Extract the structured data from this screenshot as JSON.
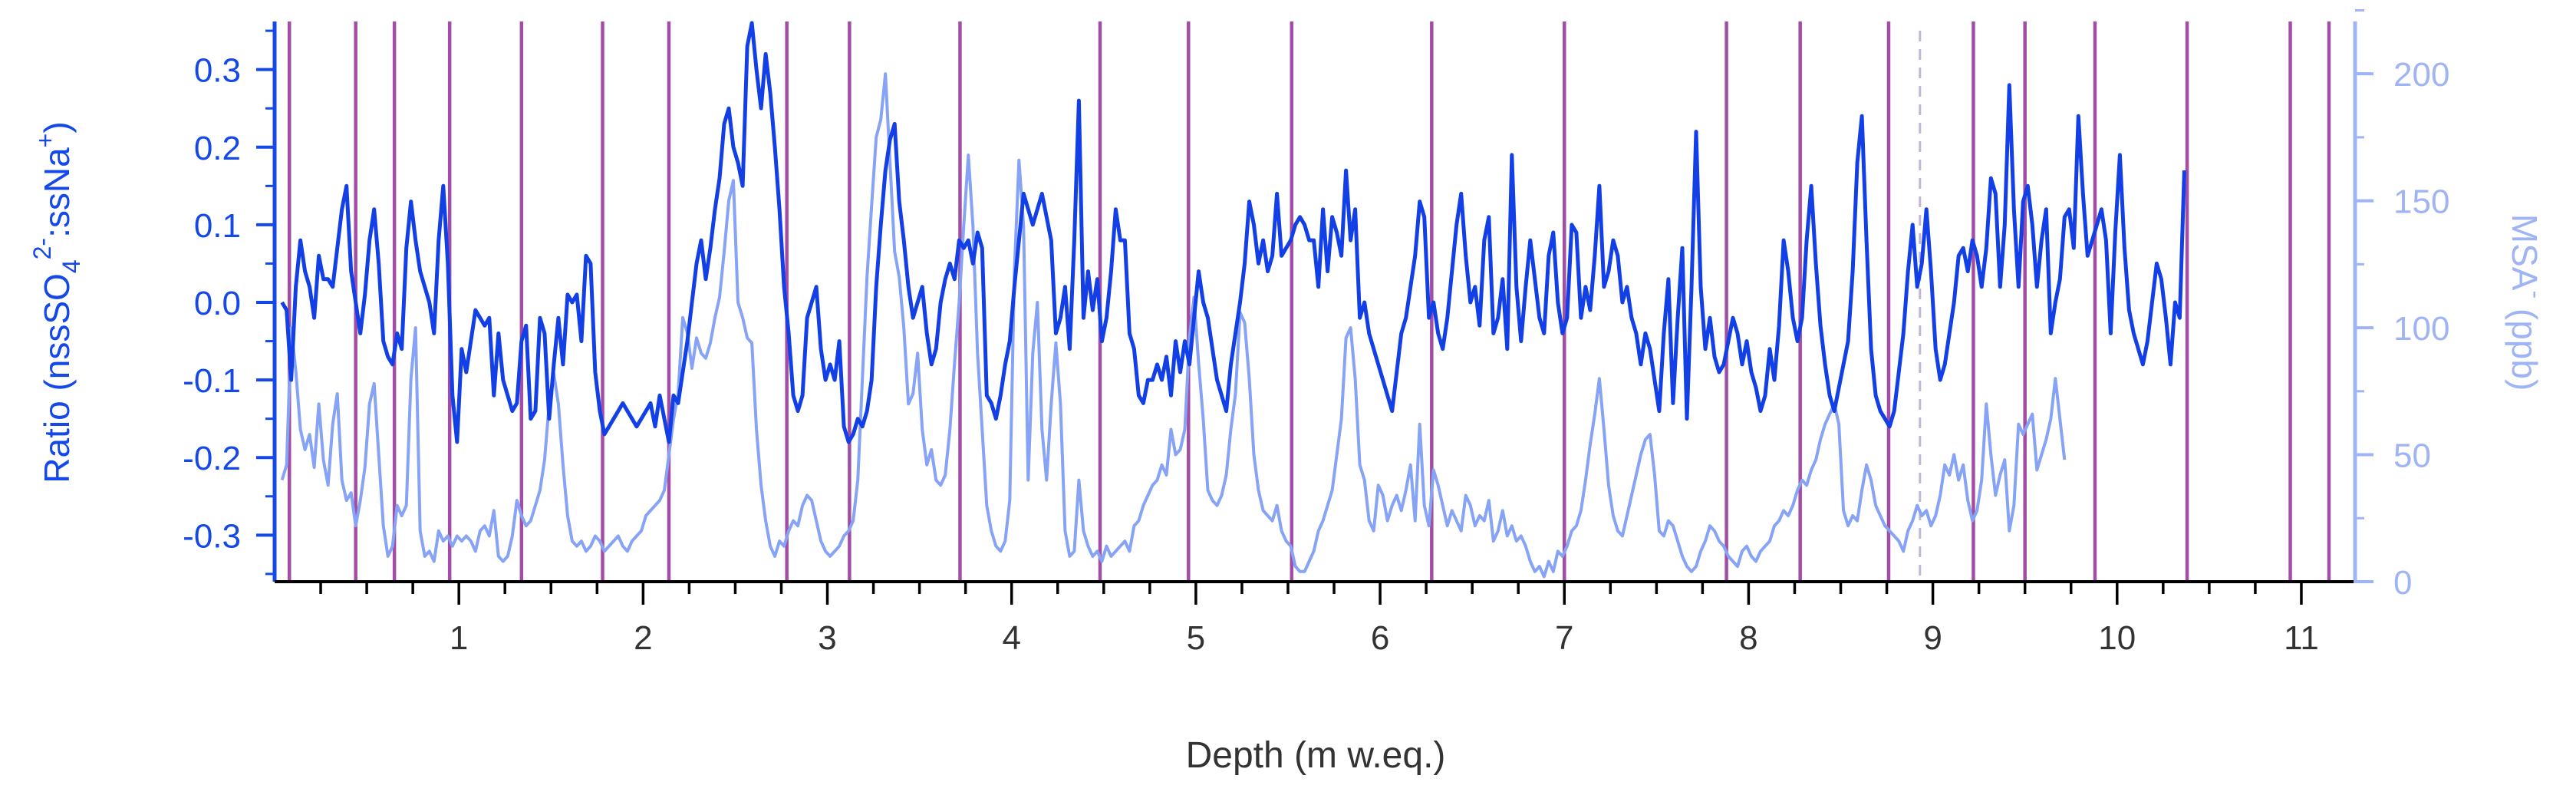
{
  "chart_data": {
    "type": "line",
    "xlabel": "Depth (m w.eq.)",
    "ylabel_left_parts": [
      "Ratio (nssSO",
      "4",
      "2-",
      ":ssNa",
      "+",
      ")"
    ],
    "ylabel_right_parts": [
      "MSA",
      "-",
      " (ppb)"
    ],
    "xlim": [
      0,
      11.25
    ],
    "ylim_left": [
      -0.36,
      0.36
    ],
    "ylim_right": [
      0,
      220
    ],
    "x_major_ticks": [
      1,
      2,
      3,
      4,
      5,
      6,
      7,
      8,
      9,
      10,
      11
    ],
    "x_major_labels": [
      "1",
      "2",
      "3",
      "4",
      "5",
      "6",
      "7",
      "8",
      "9",
      "10",
      "11"
    ],
    "x_minor_step": 0.25,
    "y_left_ticks": [
      0.3,
      0.2,
      0.1,
      0.0,
      -0.1,
      -0.2,
      -0.3
    ],
    "y_left_labels": [
      "0.3",
      "0.2",
      "0.1",
      "0.0",
      "-0.1",
      "-0.2",
      "-0.3"
    ],
    "y_right_ticks": [
      200,
      150,
      100,
      50,
      0
    ],
    "y_right_labels": [
      "200",
      "150",
      "100",
      "50",
      "0"
    ],
    "year_markers": [
      0.08,
      0.44,
      0.65,
      0.95,
      1.34,
      1.78,
      2.14,
      2.78,
      3.12,
      3.72,
      4.48,
      4.96,
      5.52,
      6.28,
      7.0,
      7.88,
      8.28,
      8.76,
      9.22,
      9.5,
      9.88,
      10.38,
      10.94,
      11.15
    ],
    "dashed_markers": [
      8.93
    ],
    "colors": {
      "ratio_line": "#1240e6",
      "msa_line": "#86a3f5",
      "left_axis": "#1548e8",
      "right_axis": "#9fb4f4",
      "year_marker": "#a24ea6",
      "dashed_marker": "#c3b6dc",
      "x_axis": "#000000",
      "text": "#333333"
    },
    "series": [
      {
        "name": "Ratio (nssSO4 2-:ssNa+)",
        "axis": "left",
        "x_start": 0.04,
        "x_step": 0.025,
        "values": [
          0.0,
          -0.01,
          -0.1,
          0.02,
          0.08,
          0.04,
          0.02,
          -0.02,
          0.06,
          0.03,
          0.03,
          0.02,
          0.07,
          0.12,
          0.15,
          0.04,
          0.0,
          -0.04,
          0.01,
          0.08,
          0.12,
          0.05,
          -0.05,
          -0.07,
          -0.08,
          -0.04,
          -0.06,
          0.07,
          0.13,
          0.08,
          0.04,
          0.02,
          0.0,
          -0.04,
          0.08,
          0.15,
          0.05,
          -0.12,
          -0.18,
          -0.06,
          -0.09,
          -0.05,
          -0.01,
          -0.02,
          -0.03,
          -0.02,
          -0.12,
          -0.04,
          -0.1,
          -0.12,
          -0.14,
          -0.13,
          -0.05,
          -0.03,
          -0.15,
          -0.14,
          -0.02,
          -0.04,
          -0.15,
          -0.08,
          -0.02,
          -0.08,
          0.01,
          0.0,
          0.01,
          -0.05,
          0.06,
          0.05,
          -0.09,
          -0.14,
          -0.17,
          -0.16,
          -0.15,
          -0.14,
          -0.13,
          -0.14,
          -0.15,
          -0.16,
          -0.15,
          -0.14,
          -0.13,
          -0.16,
          -0.12,
          -0.15,
          -0.18,
          -0.12,
          -0.13,
          -0.09,
          -0.05,
          0.0,
          0.05,
          0.08,
          0.03,
          0.07,
          0.12,
          0.16,
          0.23,
          0.25,
          0.2,
          0.18,
          0.15,
          0.33,
          0.36,
          0.3,
          0.25,
          0.32,
          0.27,
          0.2,
          0.12,
          0.02,
          -0.04,
          -0.12,
          -0.14,
          -0.12,
          -0.02,
          0.0,
          0.02,
          -0.06,
          -0.1,
          -0.08,
          -0.1,
          -0.05,
          -0.16,
          -0.18,
          -0.17,
          -0.15,
          -0.16,
          -0.14,
          -0.1,
          0.02,
          0.1,
          0.17,
          0.21,
          0.23,
          0.13,
          0.08,
          0.02,
          -0.02,
          0.0,
          0.02,
          -0.04,
          -0.08,
          -0.06,
          0.0,
          0.03,
          0.05,
          0.03,
          0.08,
          0.07,
          0.08,
          0.05,
          0.09,
          0.07,
          -0.12,
          -0.13,
          -0.15,
          -0.12,
          -0.08,
          -0.05,
          0.02,
          0.08,
          0.14,
          0.12,
          0.1,
          0.12,
          0.14,
          0.11,
          0.08,
          -0.04,
          -0.02,
          0.02,
          -0.06,
          0.08,
          0.26,
          -0.02,
          0.04,
          -0.01,
          0.03,
          -0.05,
          -0.02,
          0.04,
          0.12,
          0.08,
          0.08,
          -0.04,
          -0.06,
          -0.12,
          -0.13,
          -0.1,
          -0.1,
          -0.08,
          -0.1,
          -0.07,
          -0.12,
          -0.05,
          -0.09,
          -0.05,
          -0.08,
          -0.02,
          0.04,
          0.0,
          -0.02,
          -0.06,
          -0.1,
          -0.12,
          -0.14,
          -0.08,
          -0.04,
          0.0,
          0.05,
          0.13,
          0.1,
          0.05,
          0.08,
          0.04,
          0.06,
          0.14,
          0.06,
          0.07,
          0.08,
          0.1,
          0.11,
          0.1,
          0.08,
          0.08,
          0.02,
          0.12,
          0.04,
          0.11,
          0.09,
          0.06,
          0.17,
          0.08,
          0.12,
          -0.02,
          0.0,
          -0.04,
          -0.06,
          -0.08,
          -0.1,
          -0.12,
          -0.14,
          -0.09,
          -0.04,
          -0.02,
          0.02,
          0.06,
          0.13,
          0.11,
          -0.02,
          0.0,
          -0.04,
          -0.06,
          -0.02,
          0.04,
          0.1,
          0.14,
          0.06,
          0.0,
          0.02,
          -0.03,
          0.08,
          0.11,
          -0.04,
          -0.02,
          0.03,
          -0.06,
          0.19,
          0.02,
          -0.05,
          0.02,
          0.08,
          0.03,
          -0.02,
          -0.04,
          0.06,
          0.09,
          0.0,
          -0.04,
          -0.02,
          0.1,
          0.09,
          -0.02,
          0.02,
          -0.01,
          0.06,
          0.15,
          0.02,
          0.04,
          0.08,
          0.06,
          0.0,
          0.02,
          -0.02,
          -0.04,
          -0.08,
          -0.04,
          -0.06,
          -0.1,
          -0.14,
          -0.04,
          0.03,
          -0.13,
          -0.02,
          0.07,
          -0.15,
          0.02,
          0.22,
          0.02,
          -0.06,
          -0.02,
          -0.07,
          -0.09,
          -0.08,
          -0.05,
          -0.02,
          -0.04,
          -0.08,
          -0.05,
          -0.09,
          -0.11,
          -0.14,
          -0.12,
          -0.06,
          -0.1,
          -0.03,
          0.08,
          0.04,
          -0.02,
          -0.05,
          -0.02,
          0.08,
          0.15,
          0.05,
          -0.03,
          -0.08,
          -0.12,
          -0.14,
          -0.11,
          -0.08,
          -0.05,
          0.04,
          0.18,
          0.24,
          0.08,
          -0.06,
          -0.12,
          -0.14,
          -0.15,
          -0.16,
          -0.14,
          -0.09,
          -0.04,
          0.04,
          0.1,
          0.02,
          0.05,
          0.12,
          0.04,
          -0.06,
          -0.1,
          -0.08,
          -0.04,
          0.0,
          0.06,
          0.07,
          0.04,
          0.08,
          0.06,
          0.02,
          0.07,
          0.16,
          0.14,
          0.02,
          0.1,
          0.28,
          0.12,
          0.02,
          0.13,
          0.15,
          0.1,
          0.02,
          0.08,
          0.12,
          -0.04,
          0.0,
          0.03,
          0.11,
          0.12,
          0.07,
          0.24,
          0.14,
          0.06,
          0.08,
          0.1,
          0.12,
          0.08,
          -0.04,
          0.09,
          0.19,
          0.07,
          -0.01,
          -0.04,
          -0.06,
          -0.08,
          -0.05,
          0.0,
          0.05,
          0.03,
          -0.02,
          -0.08,
          0.0,
          -0.02,
          0.17
        ]
      },
      {
        "name": "MSA- (ppb)",
        "axis": "right",
        "x_start": 0.04,
        "x_step": 0.025,
        "values": [
          40,
          46,
          100,
          83,
          60,
          52,
          58,
          45,
          70,
          48,
          38,
          62,
          74,
          40,
          32,
          35,
          22,
          32,
          45,
          70,
          78,
          50,
          22,
          10,
          14,
          30,
          26,
          30,
          80,
          100,
          20,
          10,
          12,
          8,
          20,
          16,
          18,
          14,
          18,
          16,
          18,
          16,
          12,
          20,
          22,
          18,
          28,
          10,
          8,
          10,
          18,
          32,
          26,
          22,
          24,
          30,
          36,
          48,
          70,
          82,
          70,
          46,
          26,
          16,
          14,
          16,
          12,
          14,
          18,
          16,
          12,
          14,
          16,
          18,
          14,
          12,
          16,
          18,
          20,
          26,
          28,
          30,
          32,
          36,
          50,
          64,
          74,
          104,
          98,
          84,
          96,
          90,
          88,
          94,
          104,
          112,
          130,
          150,
          158,
          110,
          104,
          96,
          94,
          60,
          38,
          24,
          14,
          10,
          16,
          14,
          20,
          24,
          22,
          30,
          34,
          32,
          24,
          16,
          12,
          10,
          12,
          14,
          18,
          20,
          24,
          40,
          80,
          120,
          148,
          175,
          182,
          200,
          165,
          130,
          120,
          100,
          70,
          74,
          90,
          60,
          46,
          52,
          40,
          38,
          42,
          60,
          86,
          110,
          140,
          168,
          140,
          90,
          60,
          30,
          20,
          14,
          12,
          16,
          32,
          122,
          166,
          140,
          40,
          90,
          110,
          60,
          40,
          70,
          94,
          70,
          20,
          10,
          12,
          40,
          20,
          14,
          10,
          12,
          8,
          14,
          10,
          12,
          14,
          16,
          12,
          22,
          24,
          30,
          34,
          38,
          40,
          46,
          42,
          60,
          50,
          52,
          60,
          96,
          112,
          86,
          64,
          36,
          32,
          30,
          34,
          42,
          60,
          74,
          106,
          102,
          80,
          50,
          36,
          28,
          26,
          24,
          30,
          20,
          16,
          14,
          6,
          4,
          4,
          8,
          12,
          20,
          24,
          30,
          36,
          50,
          64,
          96,
          100,
          80,
          46,
          40,
          24,
          20,
          38,
          34,
          24,
          30,
          34,
          28,
          36,
          46,
          24,
          62,
          30,
          22,
          44,
          38,
          30,
          22,
          28,
          24,
          20,
          34,
          30,
          22,
          26,
          24,
          32,
          16,
          20,
          28,
          18,
          22,
          16,
          18,
          14,
          8,
          4,
          6,
          2,
          8,
          4,
          12,
          10,
          14,
          20,
          22,
          28,
          40,
          54,
          66,
          80,
          60,
          38,
          26,
          20,
          18,
          26,
          34,
          42,
          50,
          56,
          58,
          42,
          20,
          18,
          24,
          22,
          16,
          10,
          6,
          4,
          6,
          12,
          16,
          22,
          20,
          16,
          14,
          10,
          8,
          6,
          12,
          14,
          10,
          8,
          12,
          14,
          16,
          22,
          24,
          28,
          26,
          30,
          36,
          40,
          38,
          44,
          48,
          56,
          62,
          66,
          70,
          62,
          28,
          22,
          26,
          24,
          36,
          46,
          40,
          30,
          26,
          22,
          20,
          18,
          16,
          12,
          20,
          24,
          30,
          26,
          28,
          22,
          26,
          34,
          46,
          42,
          50,
          40,
          46,
          32,
          24,
          28,
          40,
          70,
          50,
          34,
          42,
          48,
          20,
          30,
          62,
          58,
          62,
          66,
          44,
          50,
          56,
          64,
          80,
          64,
          48
        ]
      }
    ]
  }
}
